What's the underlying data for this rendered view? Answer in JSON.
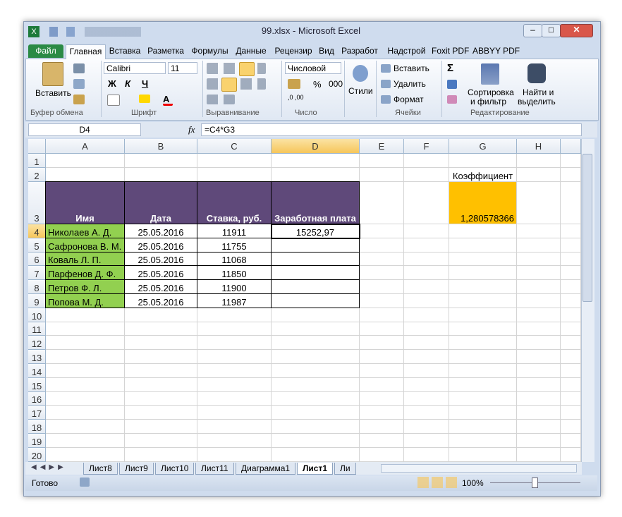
{
  "window": {
    "title": "99.xlsx - Microsoft Excel"
  },
  "tabs": [
    "Файл",
    "Главная",
    "Вставка",
    "Разметка",
    "Формулы",
    "Данные",
    "Рецензир",
    "Вид",
    "Разработ",
    "Надстрой",
    "Foxit PDF",
    "ABBYY PDF"
  ],
  "ribbon": {
    "clipboard": {
      "paste": "Вставить",
      "label": "Буфер обмена"
    },
    "font": {
      "name": "Calibri",
      "size": "11",
      "bold": "Ж",
      "italic": "К",
      "underline": "Ч",
      "label": "Шрифт"
    },
    "alignment": {
      "label": "Выравнивание"
    },
    "number": {
      "format": "Числовой",
      "percent": "%",
      "thousands": "000",
      "label": "Число"
    },
    "styles": {
      "button": "Стили"
    },
    "cells": {
      "insert": "Вставить",
      "delete": "Удалить",
      "format": "Формат",
      "label": "Ячейки"
    },
    "editing": {
      "sum": "Σ",
      "sort_1": "Сортировка",
      "sort_2": "и фильтр",
      "find_1": "Найти и",
      "find_2": "выделить",
      "label": "Редактирование"
    }
  },
  "formula_bar": {
    "name_box": "D4",
    "fx": "fx",
    "formula": "=C4*G3"
  },
  "columns": [
    "A",
    "B",
    "C",
    "D",
    "E",
    "F",
    "G",
    "H"
  ],
  "rows": [
    1,
    2,
    3,
    4,
    5,
    6,
    7,
    8,
    9,
    10,
    11,
    12,
    13,
    14,
    15,
    16,
    17,
    18,
    19,
    20
  ],
  "table": {
    "header": [
      "Имя",
      "Дата",
      "Ставка, руб.",
      "Заработная плата"
    ],
    "rows": [
      [
        "Николаев А. Д.",
        "25.05.2016",
        11911,
        "15252,97"
      ],
      [
        "Сафронова В. М.",
        "25.05.2016",
        11755,
        ""
      ],
      [
        "Коваль Л. П.",
        "25.05.2016",
        11068,
        ""
      ],
      [
        "Парфенов Д. Ф.",
        "25.05.2016",
        11850,
        ""
      ],
      [
        "Петров Ф. Л.",
        "25.05.2016",
        11900,
        ""
      ],
      [
        "Попова М. Д.",
        "25.05.2016",
        11987,
        ""
      ]
    ]
  },
  "coefficient": {
    "label": "Коэффициент",
    "value": "1,280578366"
  },
  "sheets": [
    "Лист8",
    "Лист9",
    "Лист10",
    "Лист11",
    "Диаграмма1",
    "Лист1",
    "Ли"
  ],
  "status": {
    "ready": "Готово",
    "zoom": "100%"
  }
}
